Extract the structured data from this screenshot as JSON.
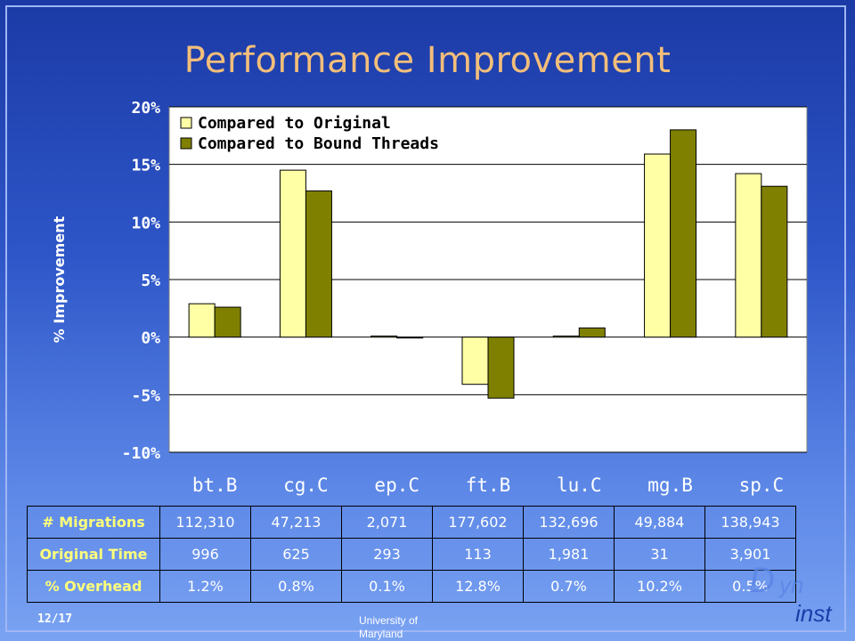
{
  "slide": {
    "title": "Performance Improvement",
    "page_number": "12/17",
    "footer_text": "University of Maryland",
    "logo": {
      "part1": "D",
      "part2": "yn",
      "part3": "inst"
    }
  },
  "colors": {
    "series_original": "#ffffa6",
    "series_bound": "#808000",
    "plot_background": "#ffffff",
    "table_header_text": "#ffff7a",
    "title_text": "#f3be7a"
  },
  "chart_data": {
    "type": "bar",
    "title": "",
    "xlabel": "",
    "ylabel": "% Improvement",
    "categories": [
      "bt.B",
      "cg.C",
      "ep.C",
      "ft.B",
      "lu.C",
      "mg.B",
      "sp.C"
    ],
    "series": [
      {
        "name": "Compared to Original",
        "values": [
          2.9,
          14.5,
          0.1,
          -4.1,
          0.1,
          15.9,
          14.2
        ]
      },
      {
        "name": "Compared to Bound Threads",
        "values": [
          2.6,
          12.7,
          0.0,
          -5.3,
          0.8,
          18.0,
          13.1
        ]
      }
    ],
    "ylim": [
      -10,
      20
    ],
    "yticks": [
      20,
      15,
      10,
      5,
      0,
      -5,
      -10
    ],
    "ytick_labels": [
      "20%",
      "15%",
      "10%",
      "5%",
      "0%",
      "-5%",
      "-10%"
    ],
    "grid": true,
    "legend_position": "top-left"
  },
  "table": {
    "rows": [
      {
        "label": "# Migrations",
        "values": [
          "112,310",
          "47,213",
          "2,071",
          "177,602",
          "132,696",
          "49,884",
          "138,943"
        ]
      },
      {
        "label": "Original Time",
        "values": [
          "996",
          "625",
          "293",
          "113",
          "1,981",
          "31",
          "3,901"
        ]
      },
      {
        "label": "% Overhead",
        "values": [
          "1.2%",
          "0.8%",
          "0.1%",
          "12.8%",
          "0.7%",
          "10.2%",
          "0.5%"
        ]
      }
    ]
  }
}
